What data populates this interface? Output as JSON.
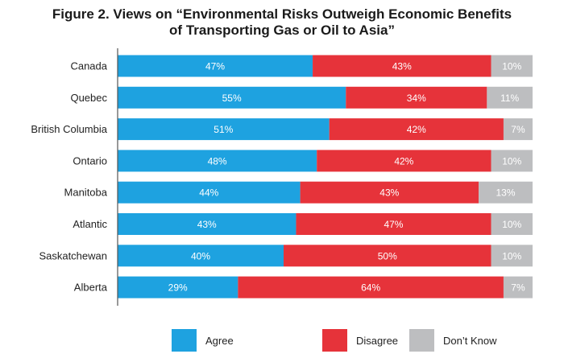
{
  "chart_data": {
    "type": "bar",
    "orientation": "horizontal",
    "stacked": true,
    "title_lines": [
      "Figure 2. Views on “Environmental Risks Outweigh Economic Benefits",
      "of Transporting Gas or Oil to Asia”"
    ],
    "categories": [
      "Canada",
      "Quebec",
      "British Columbia",
      "Ontario",
      "Manitoba",
      "Atlantic",
      "Saskatchewan",
      "Alberta"
    ],
    "series": [
      {
        "name": "Agree",
        "color": "#1ea2e0",
        "values": [
          47,
          55,
          51,
          48,
          44,
          43,
          40,
          29
        ]
      },
      {
        "name": "Disagree",
        "color": "#e6333a",
        "values": [
          43,
          34,
          42,
          42,
          43,
          47,
          50,
          64
        ]
      },
      {
        "name": "Don’t Know",
        "color": "#bdbec0",
        "values": [
          10,
          11,
          7,
          10,
          13,
          10,
          10,
          7
        ]
      }
    ],
    "value_suffix": "%",
    "xlim": [
      0,
      100
    ],
    "grid": false,
    "legend_position": "bottom"
  }
}
